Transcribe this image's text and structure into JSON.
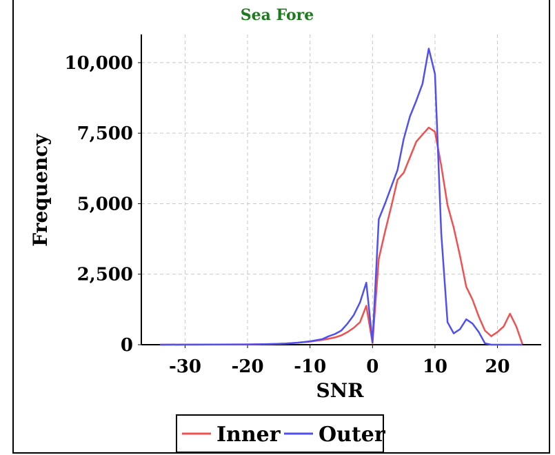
{
  "chart_data": {
    "type": "line",
    "title": "Sea Fore",
    "xlabel": "SNR",
    "ylabel": "Frequency",
    "xlim": [
      -37,
      27
    ],
    "ylim": [
      0,
      11000
    ],
    "x_ticks": [
      -30,
      -20,
      -10,
      0,
      10,
      20
    ],
    "x_tick_labels": [
      "-30",
      "-20",
      "-10",
      "0",
      "10",
      "20"
    ],
    "y_ticks": [
      0,
      2500,
      5000,
      7500,
      10000
    ],
    "y_tick_labels": [
      "0",
      "2,500",
      "5,000",
      "7,500",
      "10,000"
    ],
    "grid": true,
    "legend_position": "bottom",
    "series": [
      {
        "name": "Inner",
        "color": "#f05050",
        "x": [
          -34,
          -30,
          -25,
          -20,
          -18,
          -16,
          -14,
          -12,
          -10,
          -8,
          -7,
          -6,
          -5,
          -4,
          -3,
          -2,
          -1,
          0,
          1,
          2,
          3,
          4,
          5,
          6,
          7,
          8,
          9,
          10,
          11,
          12,
          13,
          14,
          15,
          16,
          17,
          18,
          19,
          20,
          21,
          22,
          23,
          24
        ],
        "values": [
          0,
          2,
          5,
          10,
          15,
          25,
          40,
          70,
          110,
          170,
          210,
          260,
          330,
          450,
          600,
          800,
          1380,
          60,
          3050,
          4000,
          4900,
          5850,
          6100,
          6650,
          7200,
          7450,
          7700,
          7550,
          6350,
          4950,
          4150,
          3150,
          2050,
          1600,
          1000,
          500,
          300,
          450,
          650,
          1100,
          650,
          20
        ]
      },
      {
        "name": "Outer",
        "color": "#5050f0",
        "x": [
          -34,
          -30,
          -25,
          -20,
          -18,
          -16,
          -14,
          -12,
          -10,
          -8,
          -7,
          -6,
          -5,
          -4,
          -3,
          -2,
          -1,
          0,
          1,
          2,
          3,
          4,
          5,
          6,
          7,
          8,
          9,
          10,
          11,
          12,
          13,
          14,
          15,
          16,
          17,
          18,
          19,
          20,
          21,
          22,
          23,
          24
        ],
        "values": [
          0,
          2,
          5,
          10,
          15,
          25,
          40,
          70,
          120,
          200,
          300,
          380,
          500,
          750,
          1050,
          1500,
          2200,
          80,
          4450,
          5000,
          5600,
          6200,
          7300,
          8100,
          8650,
          9250,
          10500,
          9600,
          3950,
          800,
          400,
          550,
          900,
          750,
          450,
          50,
          0,
          0,
          0,
          0,
          0,
          0
        ]
      }
    ]
  }
}
